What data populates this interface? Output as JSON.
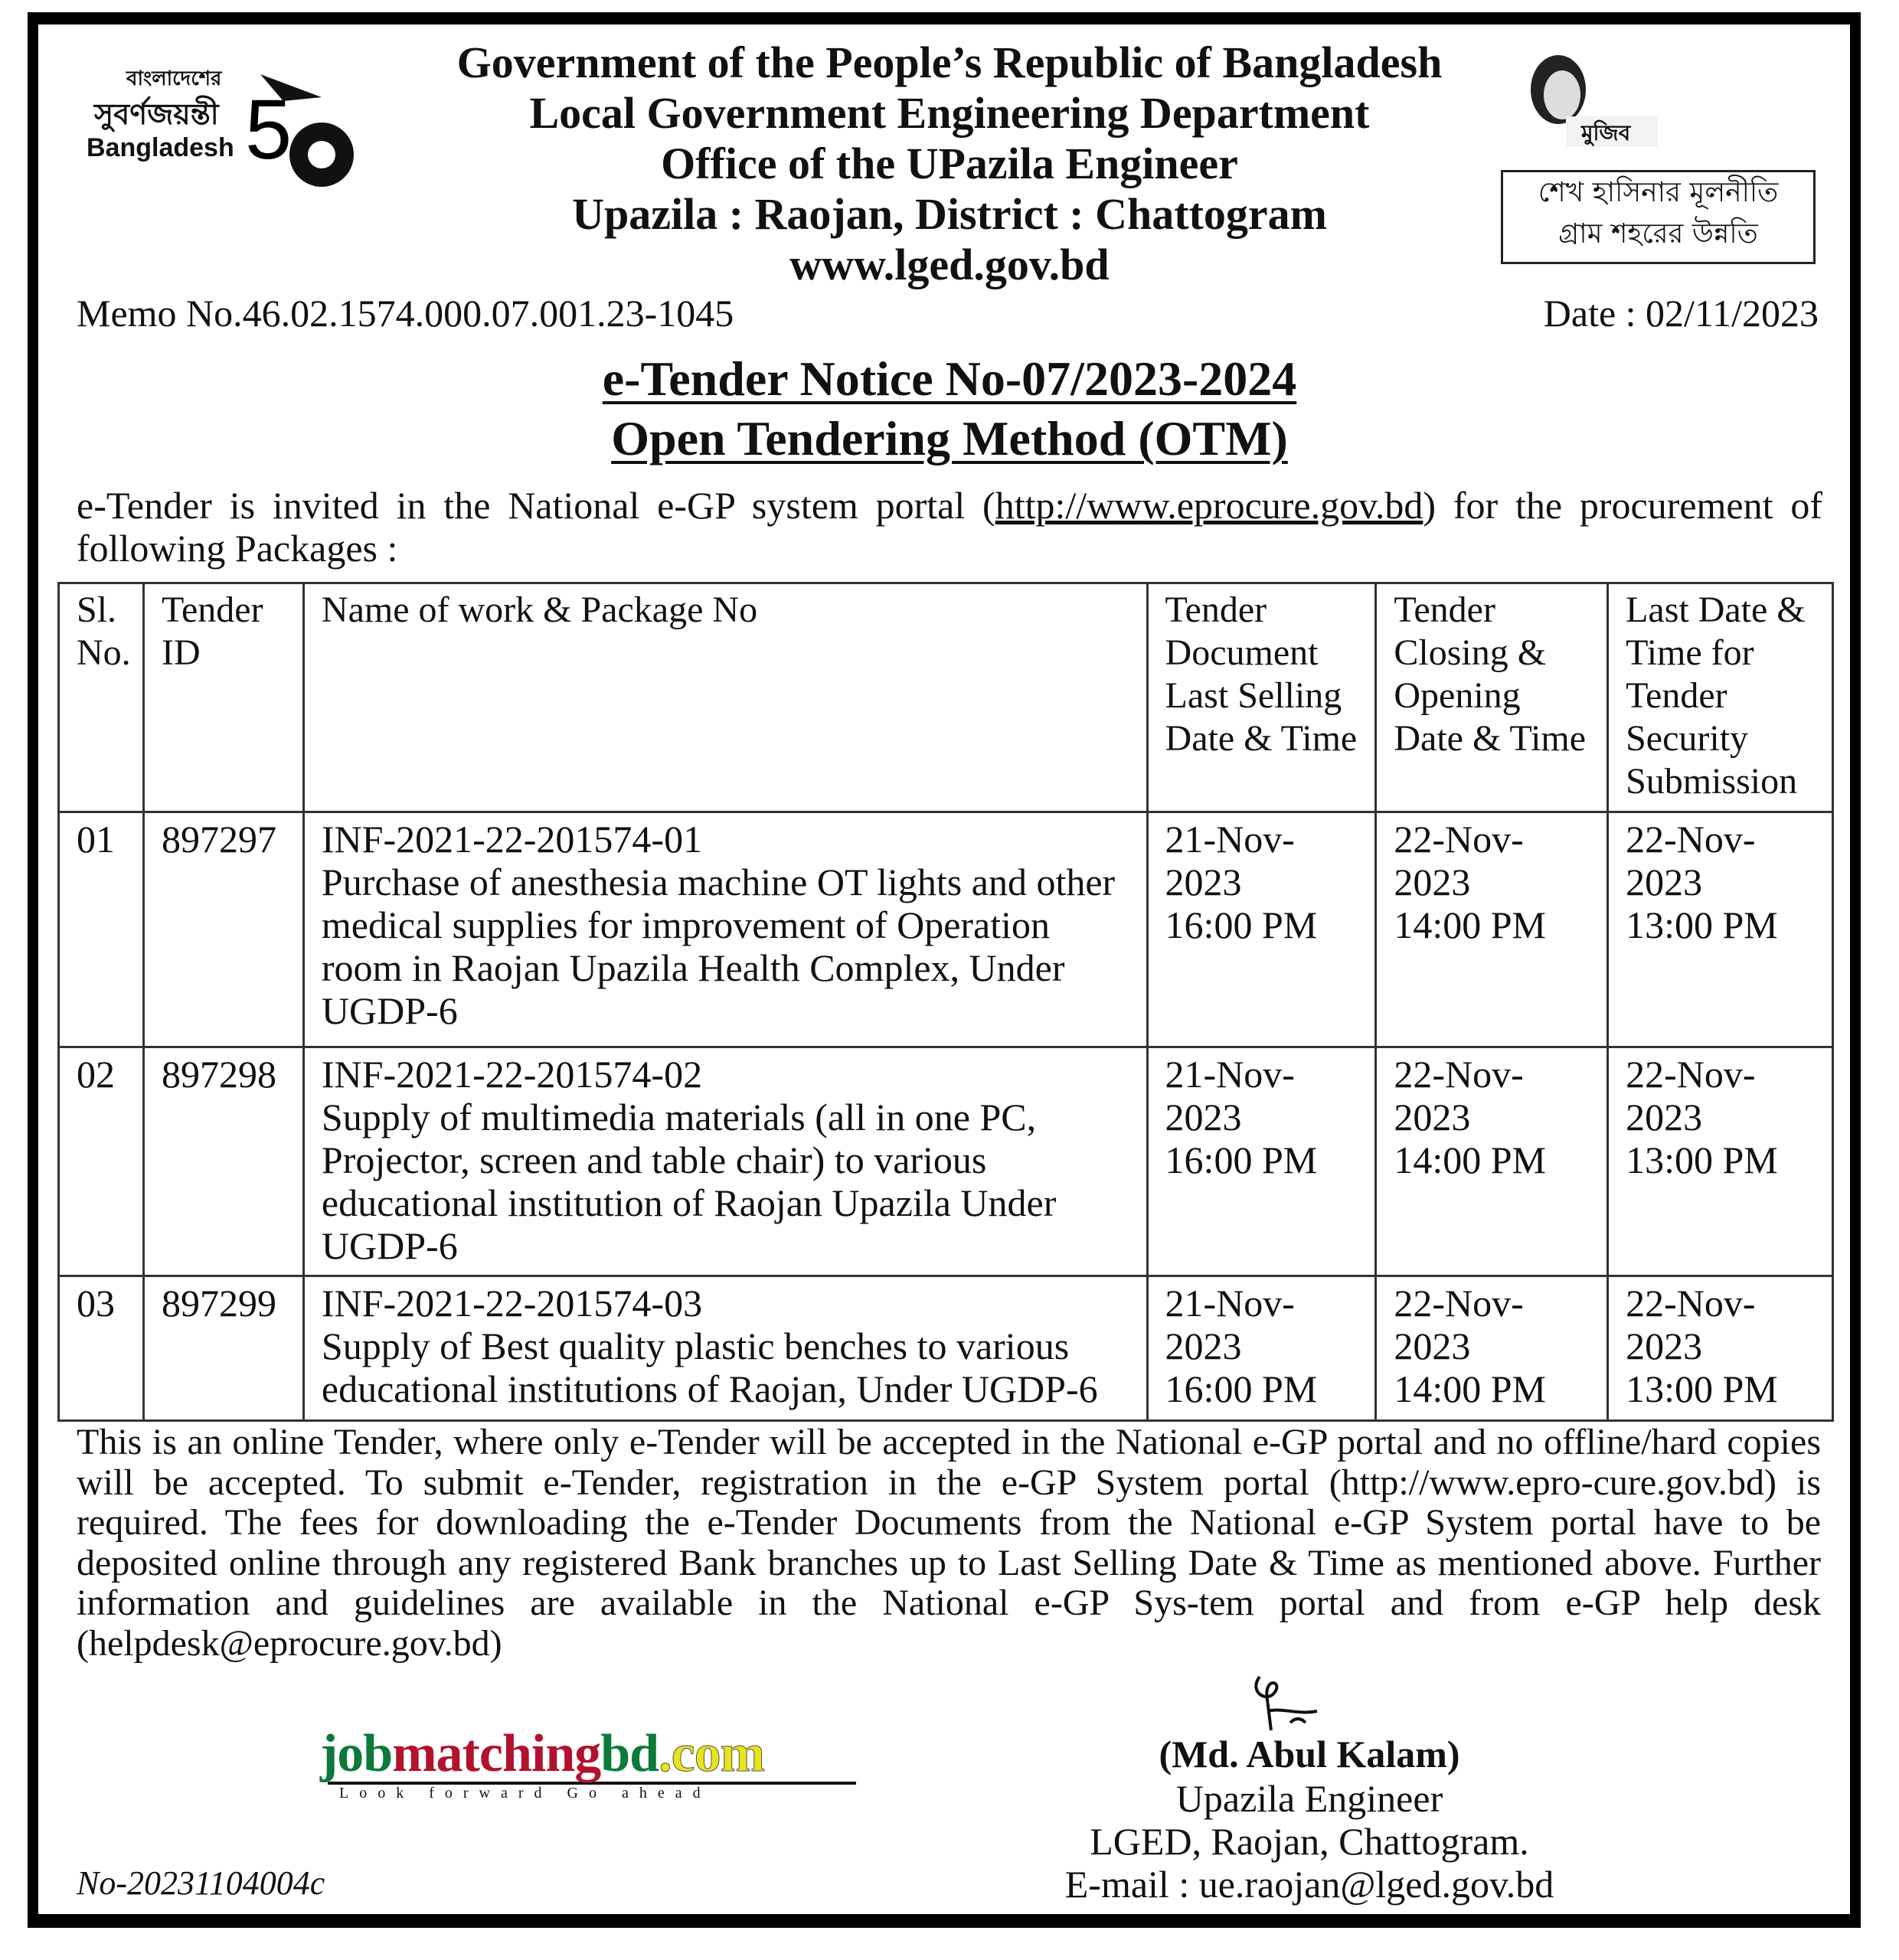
{
  "header": {
    "lines": [
      "Government of the People’s Republic of Bangladesh",
      "Local Government Engineering Department",
      "Office of the UPazila Engineer",
      "Upazila : Raojan, District : Chattogram",
      "www.lged.gov.bd"
    ],
    "left_logo": {
      "bangla_top": "বাংলাদেশের",
      "bangla_mid": "সুবর্ণজয়ন্তী",
      "country": "Bangladesh",
      "number": "50"
    },
    "right_logo_text": "মুজিব",
    "slogan": [
      "শেখ হাসিনার মূলনীতি",
      "গ্রাম শহরের উন্নতি"
    ]
  },
  "memo": "Memo No.46.02.1574.000.07.001.23-1045",
  "date": "Date : 02/11/2023",
  "title": [
    "e-Tender Notice No-07/2023-2024",
    "Open Tendering Method (OTM)"
  ],
  "intro": {
    "before": "e-Tender is invited in the National  e-GP system portal (",
    "link": "http://www.eprocure.gov.bd",
    "after": ") for the procurement of following Packages :"
  },
  "table": {
    "headers": [
      "Sl. No.",
      "Tender ID",
      "Name of work & Package No",
      "Tender Document Last Selling Date & Time",
      "Tender Closing & Opening Date & Time",
      "Last Date & Time for Tender Security Submission"
    ],
    "rows": [
      {
        "sl": "01",
        "id": "897297",
        "package": "INF-2021-22-201574-01",
        "work": "Purchase of anesthesia machine OT lights and other medical supplies for improvement of Operation room in Raojan Upazila Health Complex, Under UGDP-6",
        "selling_date": "21-Nov-2023",
        "selling_time": "16:00 PM",
        "closing_date": "22-Nov-2023",
        "closing_time": "14:00 PM",
        "security_date": "22-Nov-2023",
        "security_time": "13:00 PM"
      },
      {
        "sl": "02",
        "id": "897298",
        "package": "INF-2021-22-201574-02",
        "work": "Supply of multimedia materials (all in one PC, Projector, screen and table chair) to various educational institution of Raojan Upazila Under UGDP-6",
        "selling_date": "21-Nov-2023",
        "selling_time": "16:00 PM",
        "closing_date": "22-Nov-2023",
        "closing_time": "14:00 PM",
        "security_date": "22-Nov-2023",
        "security_time": "13:00 PM"
      },
      {
        "sl": "03",
        "id": "897299",
        "package": "INF-2021-22-201574-03",
        "work": "Supply of Best quality plastic benches to various educational institutions of Raojan, Under UGDP-6",
        "selling_date": "21-Nov-2023",
        "selling_time": "16:00 PM",
        "closing_date": "22-Nov-2023",
        "closing_time": "14:00 PM",
        "security_date": "22-Nov-2023",
        "security_time": "13:00 PM"
      }
    ]
  },
  "footer_text": "This is an online Tender, where only e-Tender will be accepted in the National e-GP portal and no offline/hard copies will be accepted. To submit e-Tender, registration in the e-GP System portal (http://www.epro-cure.gov.bd) is required. The fees for downloading the e-Tender Documents from the National e-GP System portal have to be deposited online through any registered Bank branches up to Last Selling Date & Time as mentioned above. Further information and guidelines are available in the National e-GP Sys-tem portal and from e-GP help desk (helpdesk@eprocure.gov.bd)",
  "watermark": {
    "part1": "job",
    "part2": "matching",
    "part3": "bd",
    "part4": ".com",
    "tagline": "Look forward Go ahead"
  },
  "signatory": {
    "name": "(Md. Abul Kalam)",
    "designation": "Upazila Engineer",
    "office": "LGED, Raojan, Chattogram.",
    "email": "E-mail : ue.raojan@lged.gov.bd"
  },
  "reference_no": "No-20231104004c",
  "colors": {
    "green": "#0b7a3b",
    "red": "#b3122c",
    "yellow": "#e9e31a"
  }
}
